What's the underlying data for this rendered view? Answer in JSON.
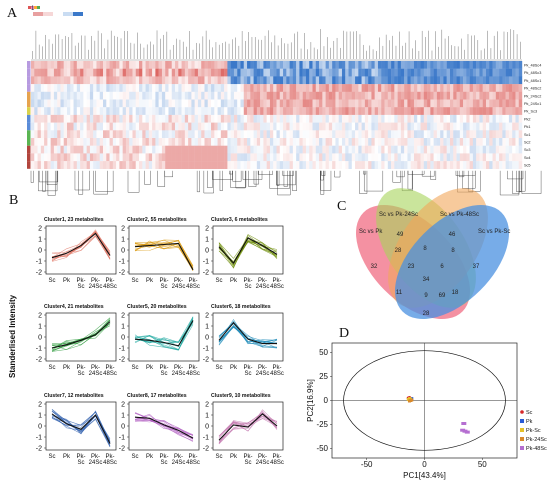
{
  "panels": {
    "a": "A",
    "b": "B",
    "c": "C",
    "d": "D"
  },
  "colors": {
    "heat_high": "#d9534f",
    "heat_low": "#3a78c9",
    "cluster_colors": [
      "#e07a6a",
      "#d99a10",
      "#6a8a00",
      "#2e9b3c",
      "#1ea8a0",
      "#1c89b8",
      "#2f5fae",
      "#b05cc0",
      "#c47ab0"
    ],
    "venn": [
      "#f0637a",
      "#a6d45a",
      "#f2a65a",
      "#4a90e0"
    ],
    "pca_groups": [
      "#d62728",
      "#2a5bd7",
      "#e6c229",
      "#d98a2b",
      "#b56fd1"
    ]
  },
  "heatmap": {
    "row_labels": [
      "Pk_48Sc4",
      "Pk_48Sc3",
      "Pk_48Sc1",
      "Pk_48Sc2",
      "Pk_24Sc2",
      "Pk_24Sc1",
      "Pk_Sc3",
      "Pk2",
      "Pk1",
      "Sc1",
      "Sc2",
      "Sc3",
      "Sc4",
      "Sc5"
    ],
    "scale_label": "1"
  },
  "clusters_axis_label": "Standerlised Intensity",
  "clusters": [
    {
      "title": "Cluster1, 23 metabolites",
      "mean": [
        -0.7,
        -0.3,
        0.4,
        1.5,
        -0.5
      ]
    },
    {
      "title": "Cluster2, 55 metabolites",
      "mean": [
        0.3,
        0.4,
        0.5,
        0.6,
        -1.8
      ]
    },
    {
      "title": "Cluster3, 6 metabolites",
      "mean": [
        0.3,
        -1.2,
        1.1,
        0.4,
        -0.4
      ]
    },
    {
      "title": "Cluster4, 21 metabolites",
      "mean": [
        -1.0,
        -0.7,
        -0.3,
        0.2,
        1.4
      ]
    },
    {
      "title": "Cluster5, 20 metabolites",
      "mean": [
        -0.2,
        -0.3,
        -0.5,
        -0.8,
        1.5
      ]
    },
    {
      "title": "Cluster6, 18 metabolites",
      "mean": [
        -0.3,
        1.3,
        -0.2,
        -0.6,
        -0.6
      ]
    },
    {
      "title": "Cluster7, 12 metabolites",
      "mean": [
        1.1,
        0.2,
        -0.3,
        1.0,
        -1.6
      ]
    },
    {
      "title": "Cluster8, 17 metabolites",
      "mean": [
        0.8,
        0.7,
        0.1,
        -0.4,
        -1.1
      ]
    },
    {
      "title": "Cluster9, 10 metabolites",
      "mean": [
        -1.3,
        0.1,
        -0.1,
        1.1,
        0.0
      ]
    }
  ],
  "cluster_yticks": [
    "2",
    "1",
    "0",
    "-1",
    "-2"
  ],
  "cluster_xticks": [
    [
      "Sc"
    ],
    [
      "Pk"
    ],
    [
      "Pk-",
      "Sc"
    ],
    [
      "Pk-",
      "24Sc"
    ],
    [
      "Pk-",
      "48Sc"
    ]
  ],
  "venn": {
    "labels": [
      "Sc vs Pk",
      "Sc vs Pk-24Sc",
      "Sc vs Pk-48Sc",
      "Sc vs Pk-Sc"
    ],
    "numbers": [
      "32",
      "49",
      "46",
      "37",
      "28",
      "8",
      "8",
      "23",
      "6",
      "34",
      "11",
      "9",
      "69",
      "18",
      "28"
    ]
  },
  "chart_data": {
    "type": "scatter",
    "xlabel": "PC1[43.4%]",
    "ylabel": "PC2[16.9%]",
    "xticks": [
      "-50",
      "0",
      "50"
    ],
    "yticks": [
      "50",
      "25",
      "0",
      "-25",
      "-50"
    ],
    "xlim": [
      -80,
      80
    ],
    "ylim": [
      -60,
      60
    ],
    "series": [
      {
        "name": "Sc",
        "points": [
          [
            -13,
            3
          ],
          [
            -12,
            2
          ],
          [
            -14,
            2.5
          ]
        ]
      },
      {
        "name": "Pk",
        "points": [
          [
            -12,
            1
          ],
          [
            -13,
            0.5
          ],
          [
            -11,
            2
          ]
        ]
      },
      {
        "name": "Pk-Sc",
        "points": [
          [
            -13,
            2
          ],
          [
            -12,
            1.5
          ],
          [
            -14,
            1
          ]
        ]
      },
      {
        "name": "Pk-24Sc",
        "points": [
          [
            -12,
            0
          ],
          [
            -13,
            -0.5
          ],
          [
            -11,
            0.5
          ]
        ]
      },
      {
        "name": "Pk-48Sc",
        "points": [
          [
            34,
            -24
          ],
          [
            35,
            -32
          ],
          [
            37,
            -33
          ],
          [
            33,
            -31
          ]
        ]
      }
    ]
  }
}
